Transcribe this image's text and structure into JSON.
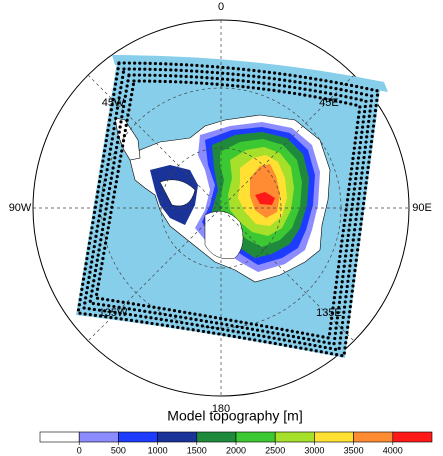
{
  "map": {
    "longitude_labels": [
      "0",
      "45E",
      "90E",
      "135E",
      "180",
      "135W",
      "90W",
      "45W"
    ]
  },
  "colorbar": {
    "title": "Model topography [m]",
    "colors": [
      "#ffffff",
      "#8c8cff",
      "#1e3cff",
      "#1a3399",
      "#1f8a3c",
      "#3cc832",
      "#a6e02a",
      "#ffe033",
      "#ff8c33",
      "#ff1a1a"
    ],
    "ticks": [
      0,
      500,
      1000,
      1500,
      2000,
      2500,
      3000,
      3500,
      4000
    ]
  }
}
